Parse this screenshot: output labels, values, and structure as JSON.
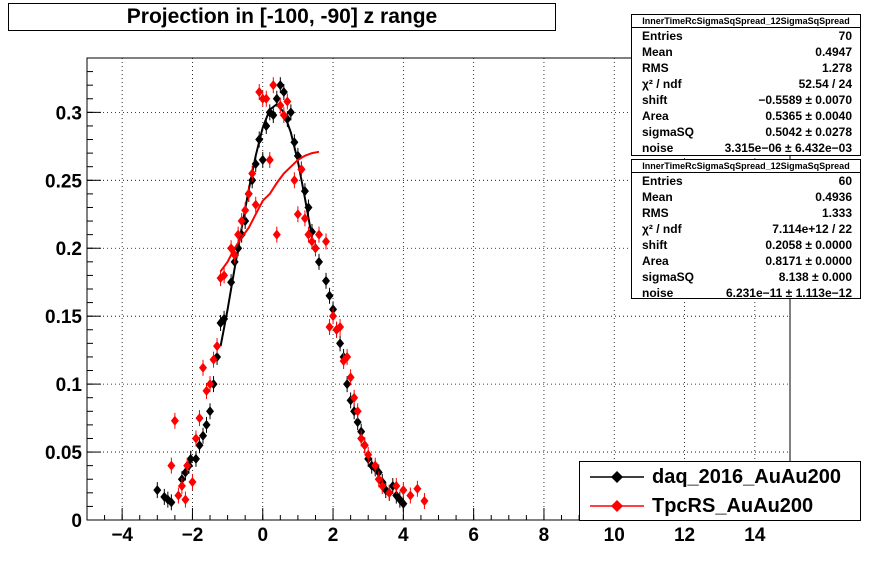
{
  "title": "Projection in [-100, -90] z range",
  "chart_data": {
    "type": "scatter",
    "title": "Projection in [-100, -90] z range",
    "xlim": [
      -5,
      15
    ],
    "ylim": [
      0,
      0.34
    ],
    "x_ticks": [
      "−4",
      "−2",
      "0",
      "2",
      "4",
      "6",
      "8",
      "10",
      "12",
      "14"
    ],
    "x_tick_values": [
      -4,
      -2,
      0,
      2,
      4,
      6,
      8,
      10,
      12,
      14
    ],
    "y_ticks": [
      "0",
      "0.05",
      "0.1",
      "0.15",
      "0.2",
      "0.25",
      "0.3"
    ],
    "y_tick_values": [
      0,
      0.05,
      0.1,
      0.15,
      0.2,
      0.25,
      0.3
    ],
    "grid": true,
    "legend_position": "bottom-right",
    "series": [
      {
        "name": "daq_2016_AuAu200",
        "color": "#000000",
        "points": [
          [
            -3.0,
            0.022
          ],
          [
            -2.8,
            0.017
          ],
          [
            -2.7,
            0.015
          ],
          [
            -2.6,
            0.013
          ],
          [
            -2.3,
            0.03
          ],
          [
            -2.2,
            0.035
          ],
          [
            -2.1,
            0.04
          ],
          [
            -2.05,
            0.045
          ],
          [
            -1.9,
            0.045
          ],
          [
            -1.8,
            0.055
          ],
          [
            -1.7,
            0.062
          ],
          [
            -1.6,
            0.07
          ],
          [
            -1.5,
            0.08
          ],
          [
            -1.4,
            0.1
          ],
          [
            -1.3,
            0.12
          ],
          [
            -1.2,
            0.145
          ],
          [
            -1.1,
            0.148
          ],
          [
            -0.9,
            0.175
          ],
          [
            -0.8,
            0.19
          ],
          [
            -0.7,
            0.2
          ],
          [
            -0.6,
            0.21
          ],
          [
            -0.5,
            0.22
          ],
          [
            -0.4,
            0.24
          ],
          [
            -0.3,
            0.25
          ],
          [
            -0.2,
            0.262
          ],
          [
            -0.1,
            0.28
          ],
          [
            0.0,
            0.265
          ],
          [
            0.1,
            0.29
          ],
          [
            0.2,
            0.3
          ],
          [
            0.3,
            0.298
          ],
          [
            0.4,
            0.31
          ],
          [
            0.5,
            0.32
          ],
          [
            0.6,
            0.315
          ],
          [
            0.7,
            0.295
          ],
          [
            0.8,
            0.3
          ],
          [
            0.9,
            0.278
          ],
          [
            1.0,
            0.268
          ],
          [
            1.1,
            0.258
          ],
          [
            1.2,
            0.242
          ],
          [
            1.3,
            0.23
          ],
          [
            1.4,
            0.212
          ],
          [
            1.5,
            0.2
          ],
          [
            1.6,
            0.19
          ],
          [
            1.8,
            0.176
          ],
          [
            1.9,
            0.165
          ],
          [
            2.0,
            0.155
          ],
          [
            2.1,
            0.14
          ],
          [
            2.2,
            0.13
          ],
          [
            2.3,
            0.12
          ],
          [
            2.4,
            0.1
          ],
          [
            2.5,
            0.088
          ],
          [
            2.6,
            0.08
          ],
          [
            2.7,
            0.072
          ],
          [
            2.8,
            0.065
          ],
          [
            2.9,
            0.055
          ],
          [
            3.0,
            0.045
          ],
          [
            3.1,
            0.04
          ],
          [
            3.2,
            0.038
          ],
          [
            3.3,
            0.035
          ],
          [
            3.4,
            0.028
          ],
          [
            3.5,
            0.022
          ],
          [
            3.6,
            0.02
          ],
          [
            3.7,
            0.025
          ],
          [
            3.8,
            0.018
          ],
          [
            3.9,
            0.015
          ],
          [
            4.0,
            0.012
          ]
        ],
        "fit": [
          [
            -1.2,
            0.128
          ],
          [
            -1.0,
            0.155
          ],
          [
            -0.8,
            0.185
          ],
          [
            -0.6,
            0.215
          ],
          [
            -0.4,
            0.243
          ],
          [
            -0.2,
            0.268
          ],
          [
            0.0,
            0.289
          ],
          [
            0.2,
            0.302
          ],
          [
            0.4,
            0.306
          ],
          [
            0.6,
            0.3
          ],
          [
            0.8,
            0.285
          ],
          [
            1.0,
            0.264
          ],
          [
            1.2,
            0.237
          ],
          [
            1.4,
            0.208
          ]
        ]
      },
      {
        "name": "TpcRS_AuAu200",
        "color": "#ff0000",
        "points": [
          [
            -2.6,
            0.04
          ],
          [
            -2.5,
            0.073
          ],
          [
            -2.4,
            0.018
          ],
          [
            -2.3,
            0.025
          ],
          [
            -2.2,
            0.015
          ],
          [
            -2.15,
            0.04
          ],
          [
            -2.0,
            0.028
          ],
          [
            -1.9,
            0.06
          ],
          [
            -1.8,
            0.075
          ],
          [
            -1.7,
            0.112
          ],
          [
            -1.6,
            0.095
          ],
          [
            -1.5,
            0.1
          ],
          [
            -1.4,
            0.118
          ],
          [
            -1.3,
            0.128
          ],
          [
            -1.2,
            0.178
          ],
          [
            -1.1,
            0.18
          ],
          [
            -0.9,
            0.2
          ],
          [
            -0.8,
            0.195
          ],
          [
            -0.7,
            0.21
          ],
          [
            -0.6,
            0.22
          ],
          [
            -0.5,
            0.228
          ],
          [
            -0.4,
            0.24
          ],
          [
            -0.3,
            0.255
          ],
          [
            -0.2,
            0.232
          ],
          [
            -0.1,
            0.315
          ],
          [
            0.0,
            0.31
          ],
          [
            0.1,
            0.31
          ],
          [
            0.2,
            0.265
          ],
          [
            0.3,
            0.32
          ],
          [
            0.4,
            0.21
          ],
          [
            0.5,
            0.305
          ],
          [
            0.6,
            0.298
          ],
          [
            0.7,
            0.308
          ],
          [
            0.9,
            0.25
          ],
          [
            1.0,
            0.225
          ],
          [
            1.1,
            0.258
          ],
          [
            1.2,
            0.222
          ],
          [
            1.3,
            0.21
          ],
          [
            1.4,
            0.205
          ],
          [
            1.5,
            0.2
          ],
          [
            1.6,
            0.21
          ],
          [
            1.8,
            0.205
          ],
          [
            1.9,
            0.142
          ],
          [
            2.0,
            0.15
          ],
          [
            2.1,
            0.14
          ],
          [
            2.2,
            0.142
          ],
          [
            2.3,
            0.117
          ],
          [
            2.4,
            0.12
          ],
          [
            2.5,
            0.105
          ],
          [
            2.6,
            0.09
          ],
          [
            2.7,
            0.08
          ],
          [
            2.8,
            0.06
          ],
          [
            2.9,
            0.055
          ],
          [
            3.0,
            0.048
          ],
          [
            3.2,
            0.04
          ],
          [
            3.3,
            0.03
          ],
          [
            3.4,
            0.025
          ],
          [
            3.6,
            0.02
          ],
          [
            3.8,
            0.025
          ],
          [
            4.0,
            0.022
          ],
          [
            4.2,
            0.018
          ],
          [
            4.4,
            0.023
          ],
          [
            4.6,
            0.014
          ]
        ],
        "fit": [
          [
            -1.2,
            0.183
          ],
          [
            -1.0,
            0.19
          ],
          [
            -0.8,
            0.2
          ],
          [
            -0.6,
            0.208
          ],
          [
            -0.4,
            0.215
          ],
          [
            -0.2,
            0.225
          ],
          [
            0.0,
            0.235
          ],
          [
            0.2,
            0.24
          ],
          [
            0.4,
            0.248
          ],
          [
            0.6,
            0.255
          ],
          [
            0.8,
            0.26
          ],
          [
            1.0,
            0.265
          ],
          [
            1.2,
            0.268
          ],
          [
            1.4,
            0.27
          ],
          [
            1.6,
            0.271
          ]
        ]
      }
    ]
  },
  "stats_boxes": [
    {
      "header": "InnerTimeRcSigmaSqSpread_12SigmaSqSpread",
      "rows": [
        [
          "Entries",
          "70"
        ],
        [
          "Mean",
          "0.4947"
        ],
        [
          "RMS",
          "1.278"
        ],
        [
          "χ² / ndf",
          "52.54 / 24"
        ],
        [
          "shift",
          "−0.5589 ± 0.0070"
        ],
        [
          "Area",
          "0.5365 ± 0.0040"
        ],
        [
          "sigmaSQ",
          "0.5042 ± 0.0278"
        ],
        [
          "noise",
          "3.315e−06 ± 6.432e−03"
        ]
      ]
    },
    {
      "header": "InnerTimeRcSigmaSqSpread_12SigmaSqSpread",
      "rows": [
        [
          "Entries",
          "60"
        ],
        [
          "Mean",
          "0.4936"
        ],
        [
          "RMS",
          "1.333"
        ],
        [
          "χ² / ndf",
          "7.114e+12 / 22"
        ],
        [
          "shift",
          "0.2058 ± 0.0000"
        ],
        [
          "Area",
          "0.8171 ± 0.0000"
        ],
        [
          "sigmaSQ",
          "8.138 ± 0.000"
        ],
        [
          "noise",
          "6.231e−11 ± 1.113e−12"
        ]
      ]
    }
  ]
}
